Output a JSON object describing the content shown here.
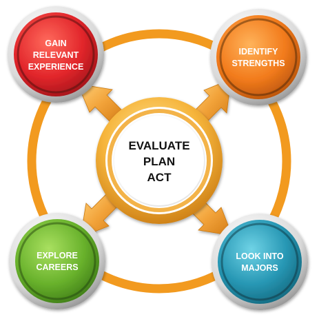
{
  "center": {
    "lines": [
      "EVALUATE",
      "PLAN",
      "ACT"
    ]
  },
  "nodes": [
    {
      "id": "gain-experience",
      "lines": [
        "GAIN",
        "RELEVANT",
        "EXPERIENCE"
      ],
      "color": "#e8202a"
    },
    {
      "id": "identify-strengths",
      "lines": [
        "IDENTIFY",
        "STRENGTHS"
      ],
      "color": "#f07d1e"
    },
    {
      "id": "explore-careers",
      "lines": [
        "EXPLORE",
        "CAREERS"
      ],
      "color": "#6cb42e"
    },
    {
      "id": "look-into-majors",
      "lines": [
        "LOOK INTO",
        "MAJORS"
      ],
      "color": "#2a9db8"
    }
  ],
  "colors": {
    "ring": "#f29a1f",
    "arrow": "#f0a63a",
    "center_ring": "#f7c25c"
  }
}
